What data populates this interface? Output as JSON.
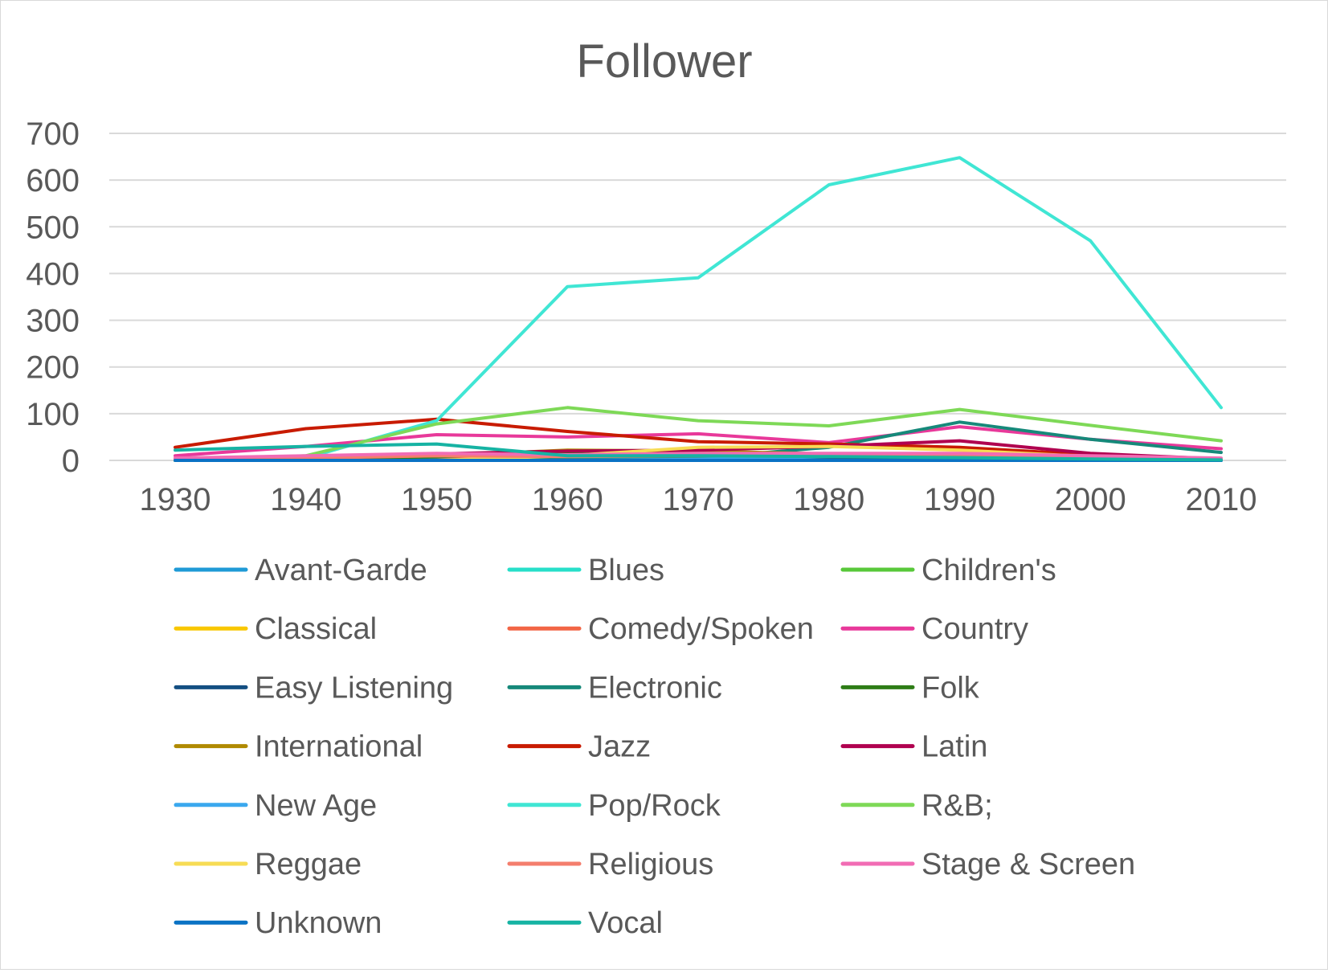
{
  "chart_data": {
    "type": "line",
    "title": "Follower",
    "xlabel": "",
    "ylabel": "",
    "x": [
      1930,
      1940,
      1950,
      1960,
      1970,
      1980,
      1990,
      2000,
      2010
    ],
    "x_tick_labels": [
      "1930",
      "1940",
      "1950",
      "1960",
      "1970",
      "1980",
      "1990",
      "2000",
      "2010"
    ],
    "ylim": [
      0,
      700
    ],
    "y_ticks": [
      0,
      100,
      200,
      300,
      400,
      500,
      600,
      700
    ],
    "y_tick_labels": [
      "0",
      "100",
      "200",
      "300",
      "400",
      "500",
      "600",
      "700"
    ],
    "grid": true,
    "legend_position": "bottom",
    "series": [
      {
        "name": "Avant-Garde",
        "color": "#1f9ad6",
        "values": [
          0,
          0,
          1,
          1,
          2,
          2,
          2,
          1,
          0
        ]
      },
      {
        "name": "Blues",
        "color": "#27dfc9",
        "values": [
          0,
          2,
          8,
          10,
          12,
          10,
          10,
          6,
          2
        ]
      },
      {
        "name": "Children's",
        "color": "#58c83a",
        "values": [
          0,
          2,
          4,
          4,
          4,
          3,
          3,
          2,
          1
        ]
      },
      {
        "name": "Classical",
        "color": "#f9c700",
        "values": [
          2,
          6,
          8,
          12,
          14,
          12,
          10,
          6,
          2
        ]
      },
      {
        "name": "Comedy/Spoken",
        "color": "#f26545",
        "values": [
          0,
          2,
          4,
          4,
          6,
          5,
          4,
          2,
          1
        ]
      },
      {
        "name": "Country",
        "color": "#e8399a",
        "values": [
          10,
          30,
          55,
          50,
          57,
          38,
          72,
          45,
          25
        ]
      },
      {
        "name": "Easy Listening",
        "color": "#144f82",
        "values": [
          2,
          5,
          12,
          14,
          8,
          6,
          4,
          2,
          0
        ]
      },
      {
        "name": "Electronic",
        "color": "#16897a",
        "values": [
          0,
          0,
          1,
          2,
          5,
          28,
          82,
          45,
          17
        ]
      },
      {
        "name": "Folk",
        "color": "#2e7d17",
        "values": [
          0,
          3,
          8,
          15,
          15,
          10,
          6,
          3,
          1
        ]
      },
      {
        "name": "International",
        "color": "#b08a00",
        "values": [
          2,
          6,
          10,
          22,
          20,
          14,
          10,
          6,
          2
        ]
      },
      {
        "name": "Jazz",
        "color": "#c81b00",
        "values": [
          28,
          68,
          88,
          62,
          40,
          35,
          28,
          12,
          2
        ]
      },
      {
        "name": "Latin",
        "color": "#b0004f",
        "values": [
          2,
          8,
          14,
          20,
          22,
          30,
          42,
          15,
          3
        ]
      },
      {
        "name": "New Age",
        "color": "#3aa8ee",
        "values": [
          0,
          0,
          0,
          0,
          2,
          8,
          10,
          4,
          1
        ]
      },
      {
        "name": "Pop/Rock",
        "color": "#40e6d4",
        "values": [
          0,
          5,
          85,
          372,
          391,
          590,
          648,
          470,
          113
        ]
      },
      {
        "name": "R&B;",
        "color": "#7ed957",
        "values": [
          0,
          10,
          78,
          113,
          85,
          74,
          109,
          75,
          42
        ]
      },
      {
        "name": "Reggae",
        "color": "#f7dc55",
        "values": [
          0,
          0,
          0,
          10,
          28,
          30,
          22,
          8,
          2
        ]
      },
      {
        "name": "Religious",
        "color": "#f47e6d",
        "values": [
          2,
          5,
          10,
          8,
          10,
          12,
          10,
          6,
          2
        ]
      },
      {
        "name": "Stage & Screen",
        "color": "#f16cb4",
        "values": [
          5,
          10,
          15,
          12,
          15,
          15,
          15,
          10,
          5
        ]
      },
      {
        "name": "Unknown",
        "color": "#0a72c4",
        "values": [
          0,
          0,
          0,
          0,
          0,
          0,
          0,
          0,
          0
        ]
      },
      {
        "name": "Vocal",
        "color": "#16b3a3",
        "values": [
          22,
          30,
          35,
          10,
          10,
          8,
          6,
          3,
          1
        ]
      }
    ]
  }
}
